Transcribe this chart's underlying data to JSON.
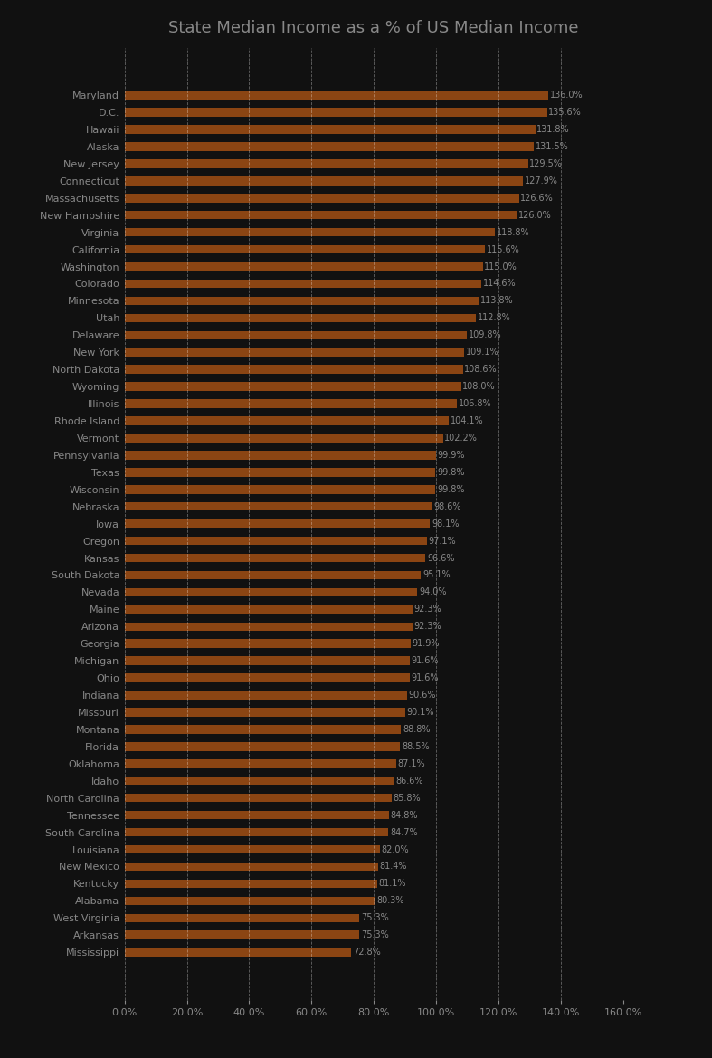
{
  "title": "State Median Income as a % of US Median Income",
  "states": [
    "Maryland",
    "D.C.",
    "Hawaii",
    "Alaska",
    "New Jersey",
    "Connecticut",
    "Massachusetts",
    "New Hampshire",
    "Virginia",
    "California",
    "Washington",
    "Colorado",
    "Minnesota",
    "Utah",
    "Delaware",
    "New York",
    "North Dakota",
    "Wyoming",
    "Illinois",
    "Rhode Island",
    "Vermont",
    "Pennsylvania",
    "Texas",
    "Wisconsin",
    "Nebraska",
    "Iowa",
    "Oregon",
    "Kansas",
    "South Dakota",
    "Nevada",
    "Maine",
    "Arizona",
    "Georgia",
    "Michigan",
    "Ohio",
    "Indiana",
    "Missouri",
    "Montana",
    "Florida",
    "Oklahoma",
    "Idaho",
    "North Carolina",
    "Tennessee",
    "South Carolina",
    "Louisiana",
    "New Mexico",
    "Kentucky",
    "Alabama",
    "West Virginia",
    "Arkansas",
    "Mississippi"
  ],
  "values": [
    136.0,
    135.6,
    131.8,
    131.5,
    129.5,
    127.9,
    126.6,
    126.0,
    118.8,
    115.6,
    115.0,
    114.6,
    113.8,
    112.8,
    109.8,
    109.1,
    108.6,
    108.0,
    106.8,
    104.1,
    102.2,
    99.9,
    99.8,
    99.8,
    98.6,
    98.1,
    97.1,
    96.6,
    95.1,
    94.0,
    92.3,
    92.3,
    91.9,
    91.6,
    91.6,
    90.6,
    90.1,
    88.8,
    88.5,
    87.1,
    86.6,
    85.8,
    84.8,
    84.7,
    82.0,
    81.4,
    81.1,
    80.3,
    75.3,
    75.3,
    72.8
  ],
  "bar_color": "#8B4513",
  "background_color": "#111111",
  "text_color": "#888888",
  "grid_color": "#ffffff",
  "title_color": "#888888",
  "xlim": [
    0,
    160
  ],
  "xticks": [
    0,
    20,
    40,
    60,
    80,
    100,
    120,
    140,
    160
  ],
  "label_fontsize": 8.0,
  "value_fontsize": 7.0,
  "title_fontsize": 13,
  "bar_height": 0.5
}
